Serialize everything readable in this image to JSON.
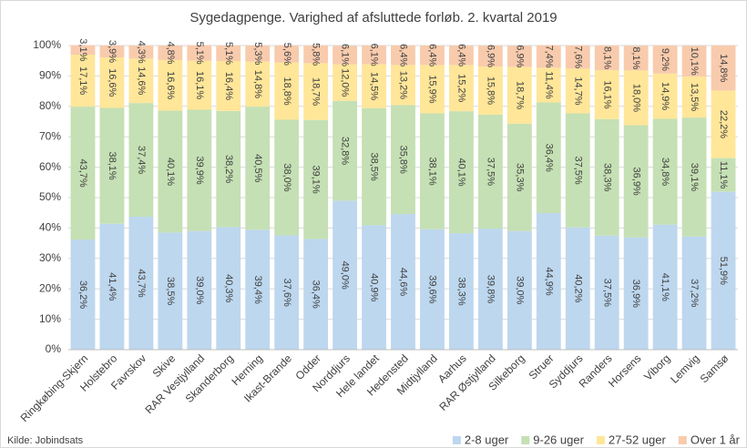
{
  "chart_data": {
    "type": "stacked_bar",
    "title": "Sygedagpenge. Varighed af afsluttede forløb. 2. kvartal 2019",
    "source": "Kilde: Jobindsats",
    "categories": [
      "Ringkøbing-Skjern",
      "Holstebro",
      "Favrskov",
      "Skive",
      "RAR Vestjylland",
      "Skanderborg",
      "Herning",
      "Ikast-Brande",
      "Odder",
      "Norddjurs",
      "Hele landet",
      "Hedensted",
      "Midtjylland",
      "Aarhus",
      "RAR Østjylland",
      "Silkeborg",
      "Struer",
      "Syddjurs",
      "Randers",
      "Horsens",
      "Viborg",
      "Lemvig",
      "Samsø"
    ],
    "series": [
      {
        "name": "2-8 uger",
        "color": "#bdd7ee",
        "values": [
          36.2,
          41.4,
          43.7,
          38.5,
          39.0,
          40.3,
          39.4,
          37.6,
          36.4,
          49.0,
          40.9,
          44.6,
          39.6,
          38.3,
          39.8,
          39.0,
          44.9,
          40.2,
          37.5,
          36.9,
          41.1,
          37.2,
          51.9
        ],
        "value_labels": [
          "36,2%",
          "41,4%",
          "43,7%",
          "38,5%",
          "39,0%",
          "40,3%",
          "39,4%",
          "37,6%",
          "36,4%",
          "49,0%",
          "40,9%",
          "44,6%",
          "39,6%",
          "38,3%",
          "39,8%",
          "39,0%",
          "44,9%",
          "40,2%",
          "37,5%",
          "36,9%",
          "41,1%",
          "37,2%",
          "51,9%"
        ]
      },
      {
        "name": "9-26 uger",
        "color": "#c5e0b4",
        "values": [
          43.7,
          38.1,
          37.4,
          40.1,
          39.9,
          38.2,
          40.5,
          38.0,
          39.1,
          32.8,
          38.5,
          35.8,
          38.1,
          40.1,
          37.5,
          35.3,
          36.4,
          37.5,
          38.3,
          36.9,
          34.8,
          39.1,
          11.1
        ],
        "value_labels": [
          "43,7%",
          "38,1%",
          "37,4%",
          "40,1%",
          "39,9%",
          "38,2%",
          "40,5%",
          "38,0%",
          "39,1%",
          "32,8%",
          "38,5%",
          "35,8%",
          "38,1%",
          "40,1%",
          "37,5%",
          "35,3%",
          "36,4%",
          "37,5%",
          "38,3%",
          "36,9%",
          "34,8%",
          "39,1%",
          "11,1%"
        ]
      },
      {
        "name": "27-52 uger",
        "color": "#ffe699",
        "values": [
          17.1,
          16.6,
          14.6,
          16.6,
          16.1,
          16.4,
          14.8,
          18.8,
          18.7,
          12.0,
          14.5,
          13.2,
          15.9,
          15.2,
          15.8,
          18.7,
          11.4,
          14.7,
          16.1,
          18.0,
          14.9,
          13.5,
          22.2
        ],
        "value_labels": [
          "17,1%",
          "16,6%",
          "14,6%",
          "16,6%",
          "16,1%",
          "16,4%",
          "14,8%",
          "18,8%",
          "18,7%",
          "12,0%",
          "14,5%",
          "13,2%",
          "15,9%",
          "15,2%",
          "15,8%",
          "18,7%",
          "11,4%",
          "14,7%",
          "16,1%",
          "18,0%",
          "14,9%",
          "13,5%",
          "22,2%"
        ]
      },
      {
        "name": "Over 1 år",
        "color": "#f8cbad",
        "values": [
          3.1,
          3.9,
          4.3,
          4.8,
          5.1,
          5.1,
          5.3,
          5.6,
          5.8,
          6.1,
          6.1,
          6.4,
          6.4,
          6.4,
          6.9,
          6.9,
          7.4,
          7.6,
          8.1,
          8.1,
          9.2,
          10.1,
          14.8
        ],
        "value_labels": [
          "3,1%",
          "3,9%",
          "4,3%",
          "4,8%",
          "5,1%",
          "5,1%",
          "5,3%",
          "5,6%",
          "5,8%",
          "6,1%",
          "6,1%",
          "6,4%",
          "6,4%",
          "6,4%",
          "6,9%",
          "6,9%",
          "7,4%",
          "7,6%",
          "8,1%",
          "8,1%",
          "9,2%",
          "10,1%",
          "14,8%"
        ]
      }
    ],
    "ylim": [
      0,
      100
    ],
    "yticks": [
      {
        "value": 0,
        "label": "0%"
      },
      {
        "value": 10,
        "label": "10%"
      },
      {
        "value": 20,
        "label": "20%"
      },
      {
        "value": 30,
        "label": "30%"
      },
      {
        "value": 40,
        "label": "40%"
      },
      {
        "value": 50,
        "label": "50%"
      },
      {
        "value": 60,
        "label": "60%"
      },
      {
        "value": 70,
        "label": "70%"
      },
      {
        "value": 80,
        "label": "80%"
      },
      {
        "value": 90,
        "label": "90%"
      },
      {
        "value": 100,
        "label": "100%"
      }
    ],
    "grid": true,
    "legend": "bottom-right"
  }
}
